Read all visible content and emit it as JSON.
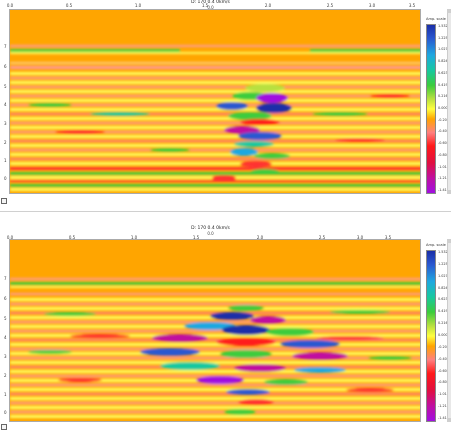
{
  "colors": {
    "background": "#ffa500",
    "scale": [
      "#1a2fa8",
      "#2a58d0",
      "#1fa8e0",
      "#18c8a0",
      "#3ccc3c",
      "#b8e040",
      "#ffff40",
      "#ffa500",
      "#ff8080",
      "#ff1a1a",
      "#e01040",
      "#c010a0",
      "#a010e0"
    ]
  },
  "icons": {
    "corner": "save-icon",
    "scroll_up": "arrow-up-icon",
    "scroll_down": "arrow-down-icon"
  },
  "panels": [
    {
      "title": "D: 170 0.4 0km/s",
      "subtitle": "0.0",
      "xticks": [
        "0.0",
        "0.5",
        "1.0",
        "1.5",
        "2.0",
        "2.5",
        "3.0",
        "3.5"
      ],
      "yticks": [
        "7",
        "6",
        "5",
        "4",
        "3",
        "2",
        "1",
        "0"
      ],
      "colorbar_title": "Amp. scale",
      "colorbar_labels": [
        "1.5326",
        "1.2256",
        "1.0277",
        "0.82492",
        "0.6232",
        "0.41992",
        "0.21665",
        "0.00009",
        "-0.20218",
        "-0.40646",
        "-0.60672",
        "-0.80999",
        "-1.0133",
        "-1.2166",
        "-1.4193"
      ]
    },
    {
      "title": "D: 170 0.4 0km/s",
      "subtitle": "0.0",
      "xticks": [
        "0.0",
        "0.5",
        "1.0",
        "1.5",
        "2.0",
        "2.5",
        "3.0",
        "3.5"
      ],
      "yticks": [
        "7",
        "6",
        "5",
        "4",
        "3",
        "2",
        "1",
        "0"
      ],
      "colorbar_title": "Amp. scale",
      "colorbar_labels": [
        "1.5326",
        "1.2256",
        "1.0277",
        "0.82492",
        "0.6232",
        "0.41992",
        "0.21665",
        "0.00009",
        "-0.20218",
        "-0.40646",
        "-0.60672",
        "-0.80999",
        "-1.0133",
        "-1.2166",
        "-1.4193"
      ]
    }
  ]
}
